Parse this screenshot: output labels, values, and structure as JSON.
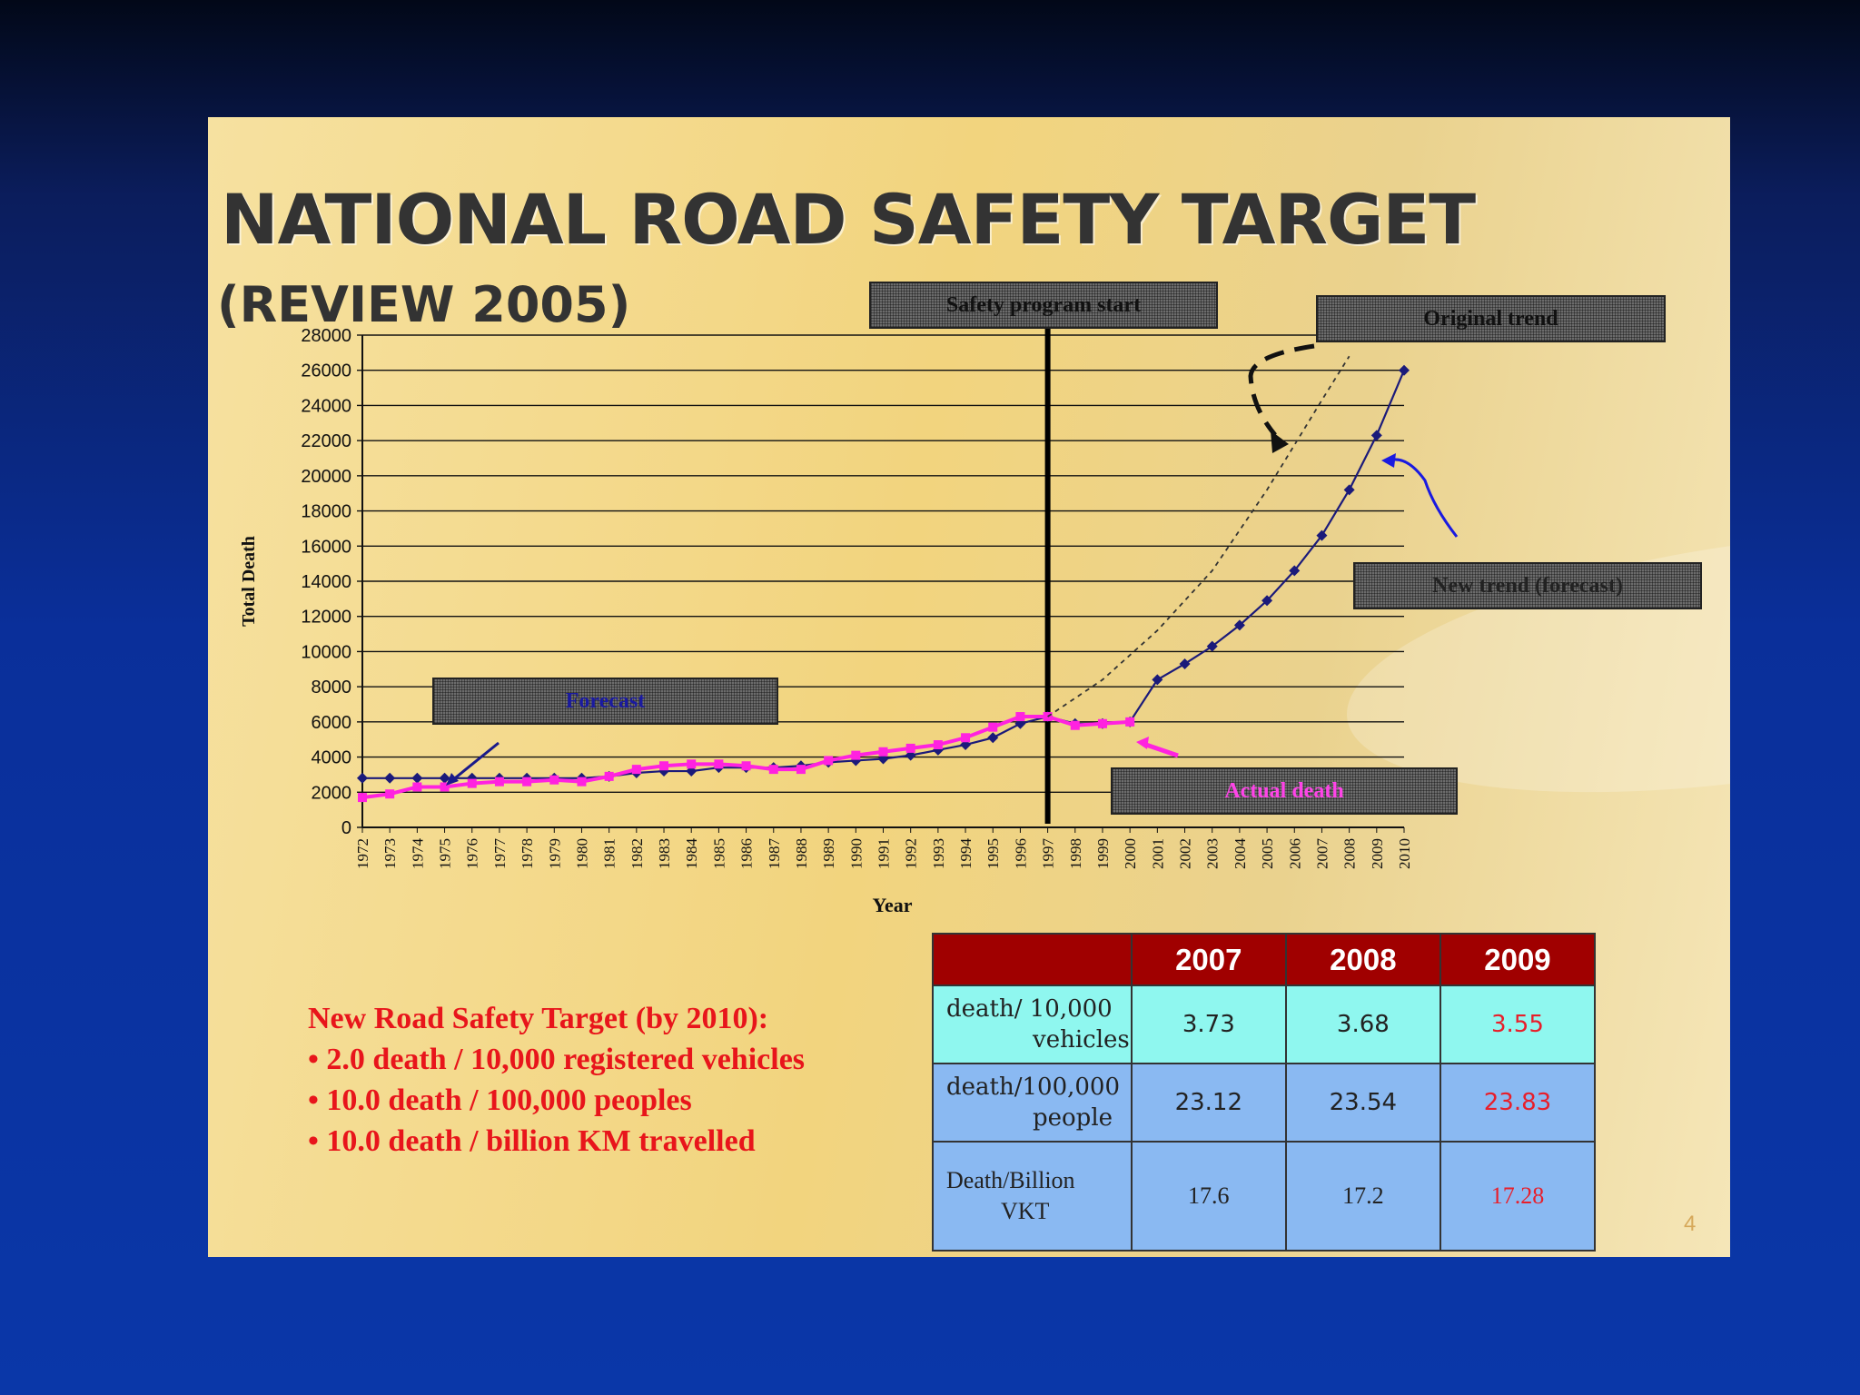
{
  "slide": {
    "title": "NATIONAL ROAD SAFETY TARGET",
    "subtitle": "(REVIEW 2005)",
    "page_number": "4"
  },
  "callouts": {
    "safety_program_start": "Safety program start",
    "original_trend": "Original trend",
    "new_trend": "New trend (forecast)",
    "forecast": "Forecast",
    "actual_death": "Actual death"
  },
  "target": {
    "heading": "New Road Safety Target (by 2010):",
    "items": [
      "• 2.0 death / 10,000 registered vehicles",
      "• 10.0 death / 100,000 peoples",
      "• 10.0 death / billion KM travelled"
    ]
  },
  "table": {
    "headers": [
      "",
      "2007",
      "2008",
      "2009"
    ],
    "rows": [
      {
        "label1": "death/ 10,000",
        "label2": "vehicles",
        "values": [
          "3.73",
          "3.68",
          "3.55"
        ]
      },
      {
        "label1": "death/100,000",
        "label2": "people",
        "values": [
          "23.12",
          "23.54",
          "23.83"
        ]
      },
      {
        "label1": "Death/Billion",
        "label2": "VKT",
        "values": [
          "17.6",
          "17.2",
          "17.28"
        ]
      }
    ]
  },
  "colors": {
    "forecast_series": "#1b1a7a",
    "actual_series": "#ff22e0",
    "original_trend": "#333333",
    "highlight_red": "#e81e2a"
  },
  "chart_data": {
    "type": "line",
    "title": "",
    "xlabel": "Year",
    "ylabel": "Total Death",
    "ylim": [
      0,
      28000
    ],
    "yticks": [
      0,
      2000,
      4000,
      6000,
      8000,
      10000,
      12000,
      14000,
      16000,
      18000,
      20000,
      22000,
      24000,
      26000,
      28000
    ],
    "grid": true,
    "x": [
      1972,
      1973,
      1974,
      1975,
      1976,
      1977,
      1978,
      1979,
      1980,
      1981,
      1982,
      1983,
      1984,
      1985,
      1986,
      1987,
      1988,
      1989,
      1990,
      1991,
      1992,
      1993,
      1994,
      1995,
      1996,
      1997,
      1998,
      1999,
      2000,
      2001,
      2002,
      2003,
      2004,
      2005,
      2006,
      2007,
      2008,
      2009,
      2010
    ],
    "series": [
      {
        "name": "Forecast",
        "marker": "diamond",
        "x": [
          1972,
          1973,
          1974,
          1975,
          1976,
          1977,
          1978,
          1979,
          1980,
          1981,
          1982,
          1983,
          1984,
          1985,
          1986,
          1987,
          1988,
          1989,
          1990,
          1991,
          1992,
          1993,
          1994,
          1995,
          1996,
          1997,
          1998,
          1999,
          2000,
          2001,
          2002,
          2003,
          2004,
          2005,
          2006,
          2007,
          2008,
          2009,
          2010
        ],
        "values": [
          2800,
          2800,
          2800,
          2800,
          2800,
          2800,
          2800,
          2800,
          2800,
          2900,
          3100,
          3200,
          3200,
          3400,
          3400,
          3400,
          3500,
          3700,
          3800,
          3900,
          4100,
          4400,
          4700,
          5100,
          5900,
          6300,
          5900,
          5900,
          6000,
          8400,
          9300,
          10300,
          11500,
          12900,
          14600,
          16600,
          19200,
          22300,
          26000
        ]
      },
      {
        "name": "Actual death",
        "marker": "square",
        "x": [
          1972,
          1973,
          1974,
          1975,
          1976,
          1977,
          1978,
          1979,
          1980,
          1981,
          1982,
          1983,
          1984,
          1985,
          1986,
          1987,
          1988,
          1989,
          1990,
          1991,
          1992,
          1993,
          1994,
          1995,
          1996,
          1997,
          1998,
          1999,
          2000
        ],
        "values": [
          1700,
          1900,
          2300,
          2300,
          2500,
          2600,
          2600,
          2700,
          2600,
          2900,
          3300,
          3500,
          3600,
          3600,
          3500,
          3300,
          3300,
          3800,
          4100,
          4300,
          4500,
          4700,
          5100,
          5700,
          6300,
          6300,
          5800,
          5900,
          6000
        ]
      },
      {
        "name": "Original trend",
        "style": "dotted",
        "x": [
          1997,
          1999,
          2001,
          2003,
          2005,
          2007,
          2008
        ],
        "values": [
          6300,
          8400,
          11200,
          14600,
          19200,
          24300,
          26800
        ]
      }
    ]
  }
}
